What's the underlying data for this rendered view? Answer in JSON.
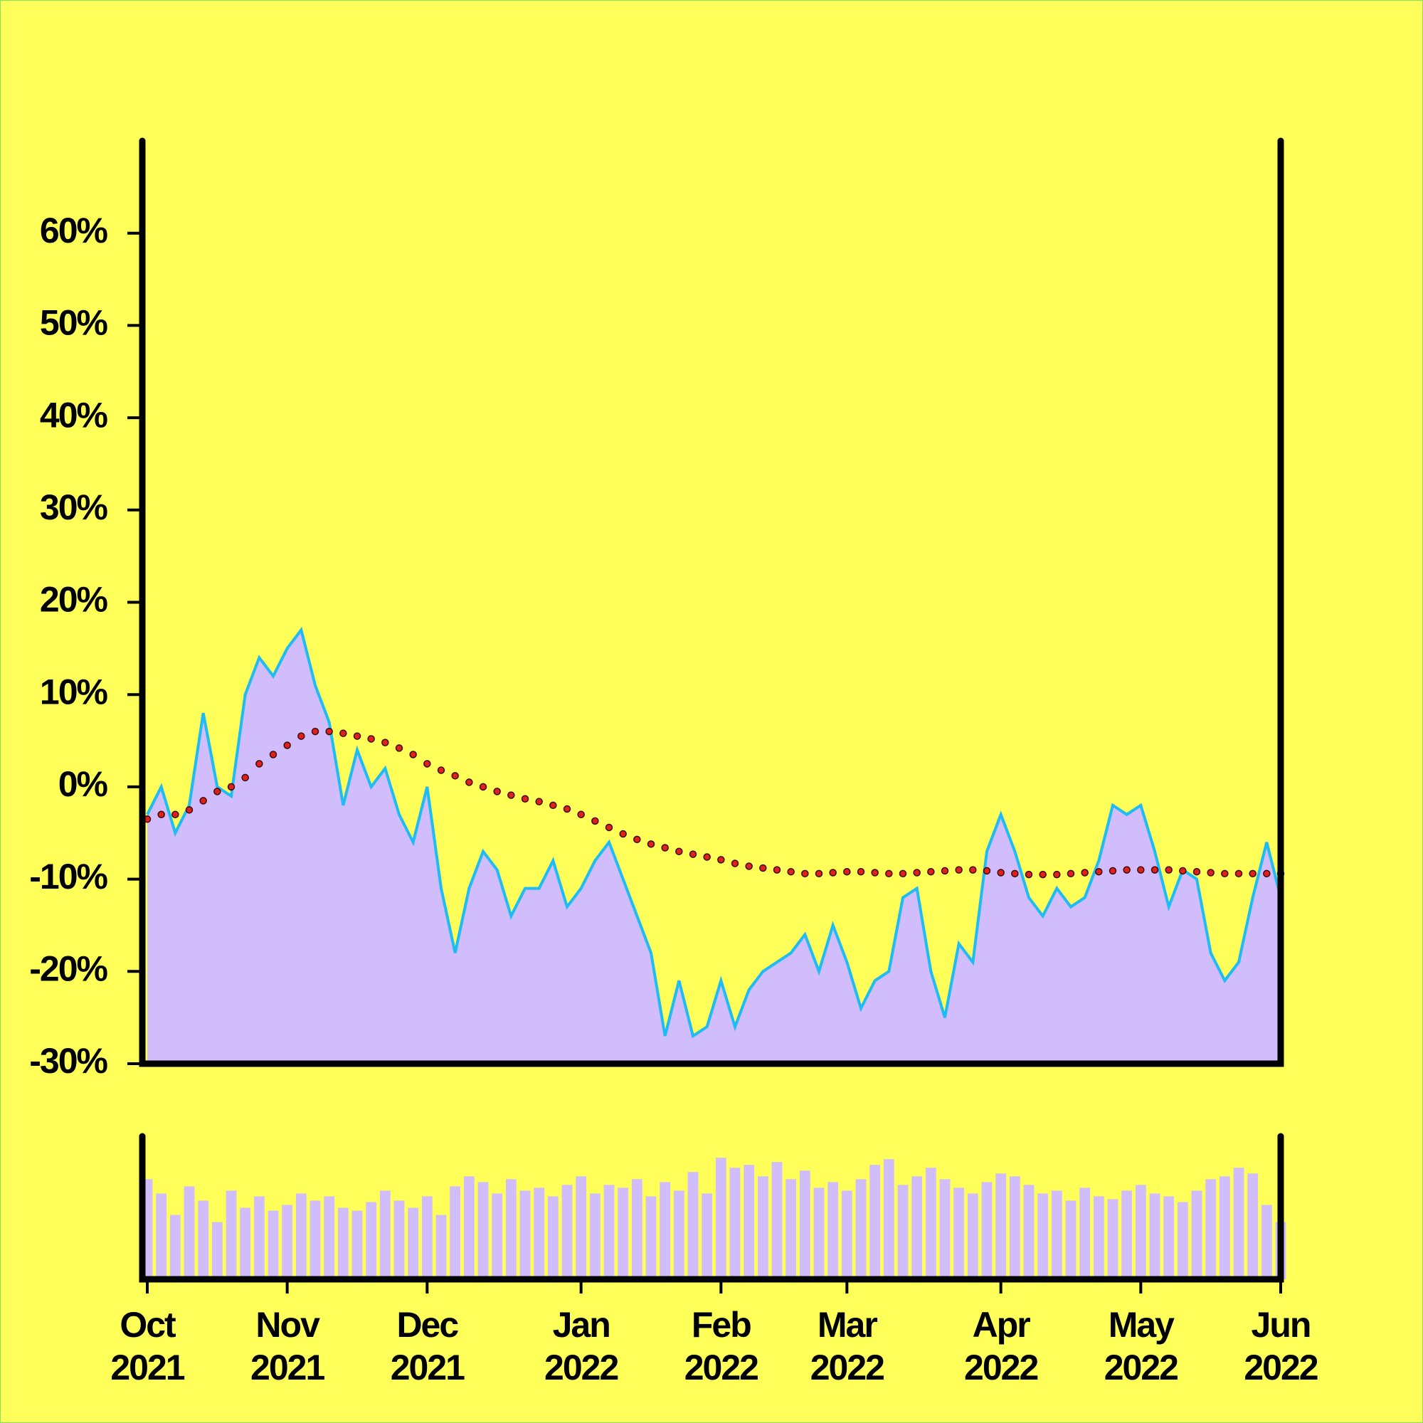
{
  "chart_data": {
    "type": "area",
    "categories": [
      "Oct 2021",
      null,
      null,
      null,
      null,
      null,
      null,
      null,
      null,
      null,
      "Nov 2021",
      null,
      null,
      null,
      null,
      null,
      null,
      null,
      null,
      null,
      "Dec 2021",
      null,
      null,
      null,
      null,
      null,
      null,
      null,
      null,
      null,
      null,
      "Jan 2022",
      null,
      null,
      null,
      null,
      null,
      null,
      null,
      null,
      null,
      "Feb 2022",
      null,
      null,
      null,
      null,
      null,
      null,
      null,
      null,
      "Mar 2022",
      null,
      null,
      null,
      null,
      null,
      null,
      null,
      null,
      null,
      null,
      "Apr 2022",
      null,
      null,
      null,
      null,
      null,
      null,
      null,
      null,
      null,
      "May 2022",
      null,
      null,
      null,
      null,
      null,
      null,
      null,
      null,
      null,
      "Jun 2022"
    ],
    "series": [
      {
        "type": "area",
        "color": "#1ebcf5",
        "fill": "#d1bcfc",
        "values": [
          -3,
          0,
          -5,
          -2,
          8,
          0,
          -1,
          10,
          14,
          12,
          15,
          17,
          11,
          7,
          -2,
          4,
          0,
          2,
          -3,
          -6,
          0,
          -11,
          -18,
          -11,
          -7,
          -9,
          -14,
          -11,
          -11,
          -8,
          -13,
          -11,
          -8,
          -6,
          -10,
          -14,
          -18,
          -27,
          -21,
          -27,
          -26,
          -21,
          -26,
          -22,
          -20,
          -19,
          -18,
          -16,
          -20,
          -15,
          -19,
          -24,
          -21,
          -20,
          -12,
          -11,
          -20,
          -25,
          -17,
          -19,
          -7,
          -3,
          -7,
          -12,
          -14,
          -11,
          -13,
          -12,
          -8,
          -2,
          -3,
          -2,
          -7,
          -13,
          -9,
          -10,
          -18,
          -21,
          -19,
          -12,
          -6,
          -12
        ]
      },
      {
        "type": "dotted",
        "color": "#e0201a",
        "values": [
          -3.5,
          -3,
          -3,
          -2.5,
          -1.5,
          -0.5,
          0,
          1,
          2.5,
          3.5,
          4.5,
          5.5,
          6,
          6,
          5.8,
          5.5,
          5.2,
          4.8,
          4.2,
          3.5,
          2.5,
          1.8,
          1.2,
          0.5,
          0,
          -0.5,
          -0.9,
          -1.3,
          -1.6,
          -2,
          -2.4,
          -3,
          -3.7,
          -4.4,
          -5.1,
          -5.7,
          -6.2,
          -6.6,
          -7,
          -7.3,
          -7.6,
          -7.9,
          -8.3,
          -8.6,
          -8.8,
          -9,
          -9.2,
          -9.4,
          -9.4,
          -9.3,
          -9.2,
          -9.2,
          -9.3,
          -9.4,
          -9.4,
          -9.3,
          -9.2,
          -9.1,
          -9,
          -9,
          -9.1,
          -9.3,
          -9.4,
          -9.5,
          -9.5,
          -9.5,
          -9.4,
          -9.3,
          -9.2,
          -9.1,
          -9,
          -9,
          -9,
          -9,
          -9.1,
          -9.2,
          -9.3,
          -9.4,
          -9.4,
          -9.4,
          -9.4,
          -9.4
        ]
      },
      {
        "type": "bar",
        "axis": "volume",
        "color": "#d1bcfc",
        "values": [
          70,
          60,
          45,
          65,
          55,
          40,
          62,
          50,
          58,
          48,
          52,
          60,
          55,
          58,
          50,
          48,
          54,
          62,
          55,
          50,
          58,
          45,
          65,
          72,
          68,
          60,
          70,
          62,
          64,
          58,
          66,
          72,
          60,
          66,
          64,
          70,
          58,
          68,
          62,
          75,
          60,
          85,
          78,
          80,
          72,
          82,
          70,
          76,
          64,
          68,
          62,
          70,
          80,
          84,
          66,
          72,
          78,
          70,
          64,
          60,
          68,
          74,
          72,
          66,
          60,
          62,
          55,
          64,
          58,
          56,
          62,
          66,
          60,
          58,
          54,
          62,
          70,
          72,
          78,
          74,
          52,
          40
        ]
      }
    ],
    "ylim": [
      -30,
      70
    ],
    "yticks": [
      {
        "value": -30,
        "label": "-30%"
      },
      {
        "value": -20,
        "label": "-20%"
      },
      {
        "value": -10,
        "label": "-10%"
      },
      {
        "value": 0,
        "label": "0%"
      },
      {
        "value": 10,
        "label": "10%"
      },
      {
        "value": 20,
        "label": "20%"
      },
      {
        "value": 30,
        "label": "30%"
      },
      {
        "value": 40,
        "label": "40%"
      },
      {
        "value": 50,
        "label": "50%"
      },
      {
        "value": 60,
        "label": "60%"
      }
    ],
    "volume_lim": [
      0,
      100
    ],
    "grid": false
  }
}
